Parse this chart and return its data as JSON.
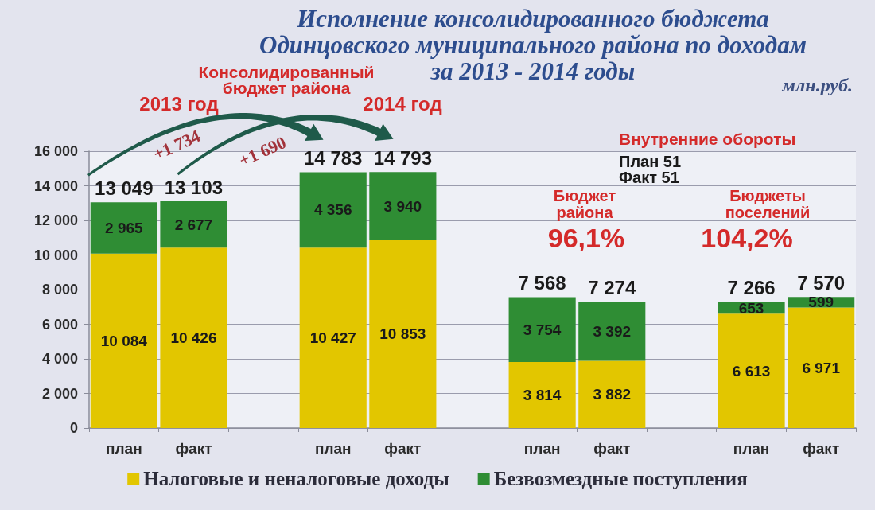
{
  "chart_data": {
    "type": "bar",
    "title": "Исполнение консолидированного бюджета\nОдинцовского муниципального района по доходам\nза 2013 - 2014 годы",
    "categories": [
      "план",
      "факт",
      null,
      "план",
      "факт",
      null,
      "план",
      "факт",
      null,
      "план",
      "факт"
    ],
    "series": [
      {
        "name": "Налоговые и неналоговые доходы",
        "color": "#e2c600",
        "values": [
          10084,
          10426,
          null,
          10427,
          10853,
          null,
          3814,
          3882,
          null,
          6613,
          6971
        ],
        "value_labels": [
          "10 084",
          "10 426",
          null,
          "10 427",
          "10 853",
          null,
          "3 814",
          "3 882",
          null,
          "6 613",
          "6 971"
        ]
      },
      {
        "name": "Безвозмездные поступления",
        "color": "#2f8d34",
        "values": [
          2965,
          2677,
          null,
          4356,
          3940,
          null,
          3754,
          3392,
          null,
          653,
          599
        ],
        "value_labels": [
          "2 965",
          "2 677",
          null,
          "4 356",
          "3 940",
          null,
          "3 754",
          "3 392",
          null,
          "653",
          "599"
        ]
      }
    ],
    "stacked": true,
    "totals": [
      "13 049",
      "13 103",
      null,
      "14 783",
      "14 793",
      null,
      "7 568",
      "7 274",
      null,
      "7 266",
      "7 570"
    ],
    "ylim": [
      0,
      16000
    ],
    "yticks": [
      0,
      {
        "value": 2000,
        "label": "2 000"
      },
      {
        "value": 4000,
        "label": "4 000"
      },
      {
        "value": 6000,
        "label": "6 000"
      },
      {
        "value": 8000,
        "label": "8 000"
      },
      {
        "value": 10000,
        "label": "10 000"
      },
      {
        "value": 12000,
        "label": "12 000"
      },
      {
        "value": 14000,
        "label": "14 000"
      },
      {
        "value": 16000,
        "label": "16 000"
      }
    ],
    "grid": "y",
    "legend": "bottom",
    "annotations": [
      "Консолидированный\nбюджет района",
      "2013 год",
      "2014 год",
      "+1 734",
      "+1 690",
      "Внутренние обороты",
      "План 51",
      "Факт 51",
      "Бюджет\nрайона",
      "Бюджеты\nпоселений",
      "96,1%",
      "104,2%",
      "млн.руб."
    ]
  }
}
